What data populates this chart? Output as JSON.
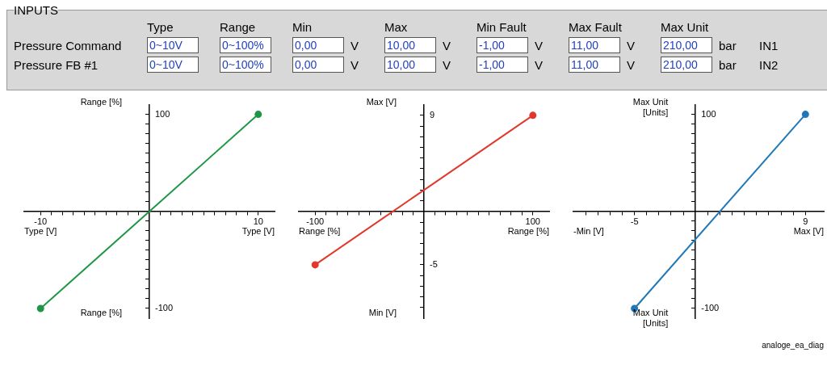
{
  "chart_data": [
    {
      "type": "other",
      "title": "INPUTS",
      "categories": [
        "Type",
        "Range",
        "Min",
        "Max",
        "Min Fault",
        "Max Fault",
        "Max Unit"
      ],
      "y_categories": [
        "Pressure Command",
        "Pressure FB #1"
      ],
      "cell_labels": [
        [
          "0~10V",
          "0~100%",
          "0,00",
          "V",
          "10,00",
          "V",
          "-1,00",
          "V",
          "11,00",
          "V",
          "210,00",
          "bar",
          "IN1"
        ],
        [
          "0~10V",
          "0~100%",
          "0,00",
          "V",
          "10,00",
          "V",
          "-1,00",
          "V",
          "11,00",
          "V",
          "210,00",
          "bar",
          "IN2"
        ]
      ]
    },
    {
      "type": "line",
      "xlabel": "Type [V]",
      "ylabel": "Range [%]",
      "annotations": [
        "Type [V]",
        "Range [%]"
      ],
      "marker": "circle",
      "line_style": "solid",
      "legend": false,
      "xlim": [
        -11.5,
        11.5
      ],
      "ylim": [
        -110,
        110
      ],
      "xticks": [
        -10,
        {
          "value": -9,
          "label": null
        },
        {
          "value": -8,
          "label": null
        },
        {
          "value": -7,
          "label": null
        },
        {
          "value": -6,
          "label": null
        },
        {
          "value": -5,
          "label": null
        },
        {
          "value": -4,
          "label": null
        },
        {
          "value": -3,
          "label": null
        },
        {
          "value": -2,
          "label": null
        },
        {
          "value": -1,
          "label": null
        },
        {
          "value": 1,
          "label": null
        },
        {
          "value": 2,
          "label": null
        },
        {
          "value": 3,
          "label": null
        },
        {
          "value": 4,
          "label": null
        },
        {
          "value": 5,
          "label": null
        },
        {
          "value": 6,
          "label": null
        },
        {
          "value": 7,
          "label": null
        },
        {
          "value": 8,
          "label": null
        },
        {
          "value": 9,
          "label": null
        },
        10
      ],
      "yticks": [
        -100,
        {
          "value": -90,
          "label": null
        },
        {
          "value": -80,
          "label": null
        },
        {
          "value": -70,
          "label": null
        },
        {
          "value": -60,
          "label": null
        },
        {
          "value": -50,
          "label": null
        },
        {
          "value": -40,
          "label": null
        },
        {
          "value": -30,
          "label": null
        },
        {
          "value": -20,
          "label": null
        },
        {
          "value": -10,
          "label": null
        },
        {
          "value": 10,
          "label": null
        },
        {
          "value": 20,
          "label": null
        },
        {
          "value": 30,
          "label": null
        },
        {
          "value": 40,
          "label": null
        },
        {
          "value": 50,
          "label": null
        },
        {
          "value": 60,
          "label": null
        },
        {
          "value": 70,
          "label": null
        },
        {
          "value": 80,
          "label": null
        },
        {
          "value": 90,
          "label": null
        },
        100
      ],
      "x": [
        -10,
        10
      ],
      "series": [
        {
          "color": "#1e9646",
          "values": [
            -100,
            100
          ]
        }
      ]
    },
    {
      "type": "line",
      "xlabel": "Range [%]",
      "ylabel": "Max [V]",
      "annotations": [
        "Range [%]",
        "Min [V]"
      ],
      "marker": "circle",
      "line_style": "solid",
      "legend": false,
      "xlim": [
        -115,
        115
      ],
      "ylim": [
        -10,
        10
      ],
      "xticks": [
        -100,
        {
          "value": -90,
          "label": null
        },
        {
          "value": -80,
          "label": null
        },
        {
          "value": -70,
          "label": null
        },
        {
          "value": -60,
          "label": null
        },
        {
          "value": -50,
          "label": null
        },
        {
          "value": -40,
          "label": null
        },
        {
          "value": -30,
          "label": null
        },
        {
          "value": -20,
          "label": null
        },
        {
          "value": -10,
          "label": null
        },
        {
          "value": 10,
          "label": null
        },
        {
          "value": 20,
          "label": null
        },
        {
          "value": 30,
          "label": null
        },
        {
          "value": 40,
          "label": null
        },
        {
          "value": 50,
          "label": null
        },
        {
          "value": 60,
          "label": null
        },
        {
          "value": 70,
          "label": null
        },
        {
          "value": 80,
          "label": null
        },
        {
          "value": 90,
          "label": null
        },
        100
      ],
      "yticks": [
        {
          "value": -9,
          "label": null
        },
        {
          "value": -8,
          "label": null
        },
        {
          "value": -7,
          "label": null
        },
        {
          "value": -6,
          "label": null
        },
        -5,
        {
          "value": -4,
          "label": null
        },
        {
          "value": -3,
          "label": null
        },
        {
          "value": -2,
          "label": null
        },
        {
          "value": -1,
          "label": null
        },
        {
          "value": 1,
          "label": null
        },
        {
          "value": 2,
          "label": null
        },
        {
          "value": 3,
          "label": null
        },
        {
          "value": 4,
          "label": null
        },
        {
          "value": 5,
          "label": null
        },
        {
          "value": 6,
          "label": null
        },
        {
          "value": 7,
          "label": null
        },
        {
          "value": 8,
          "label": null
        },
        9
      ],
      "x": [
        -100,
        100
      ],
      "series": [
        {
          "color": "#e0392b",
          "values": [
            -5,
            9
          ]
        }
      ]
    },
    {
      "type": "line",
      "xlabel": "Max [V]",
      "ylabel": "Max Unit [Units]",
      "annotations": [
        "-Min [V]",
        "Max Unit [Units]",
        "analoge_ea_diag"
      ],
      "marker": "circle",
      "line_style": "solid",
      "legend": false,
      "xlim": [
        -10,
        10.5
      ],
      "ylim": [
        -110,
        110
      ],
      "xticks": [
        {
          "value": -9,
          "label": null
        },
        {
          "value": -8,
          "label": null
        },
        {
          "value": -7,
          "label": null
        },
        {
          "value": -6,
          "label": null
        },
        -5,
        {
          "value": -4,
          "label": null
        },
        {
          "value": -3,
          "label": null
        },
        {
          "value": -2,
          "label": null
        },
        {
          "value": -1,
          "label": null
        },
        {
          "value": 1,
          "label": null
        },
        {
          "value": 2,
          "label": null
        },
        {
          "value": 3,
          "label": null
        },
        {
          "value": 4,
          "label": null
        },
        {
          "value": 5,
          "label": null
        },
        {
          "value": 6,
          "label": null
        },
        {
          "value": 7,
          "label": null
        },
        {
          "value": 8,
          "label": null
        },
        9
      ],
      "yticks": [
        -100,
        {
          "value": -90,
          "label": null
        },
        {
          "value": -80,
          "label": null
        },
        {
          "value": -70,
          "label": null
        },
        {
          "value": -60,
          "label": null
        },
        {
          "value": -50,
          "label": null
        },
        {
          "value": -40,
          "label": null
        },
        {
          "value": -30,
          "label": null
        },
        {
          "value": -20,
          "label": null
        },
        {
          "value": -10,
          "label": null
        },
        {
          "value": 10,
          "label": null
        },
        {
          "value": 20,
          "label": null
        },
        {
          "value": 30,
          "label": null
        },
        {
          "value": 40,
          "label": null
        },
        {
          "value": 50,
          "label": null
        },
        {
          "value": 60,
          "label": null
        },
        {
          "value": 70,
          "label": null
        },
        {
          "value": 80,
          "label": null
        },
        {
          "value": 90,
          "label": null
        },
        100
      ],
      "x": [
        -5,
        9
      ],
      "series": [
        {
          "color": "#1f78b8",
          "values": [
            -100,
            100
          ]
        }
      ]
    }
  ]
}
